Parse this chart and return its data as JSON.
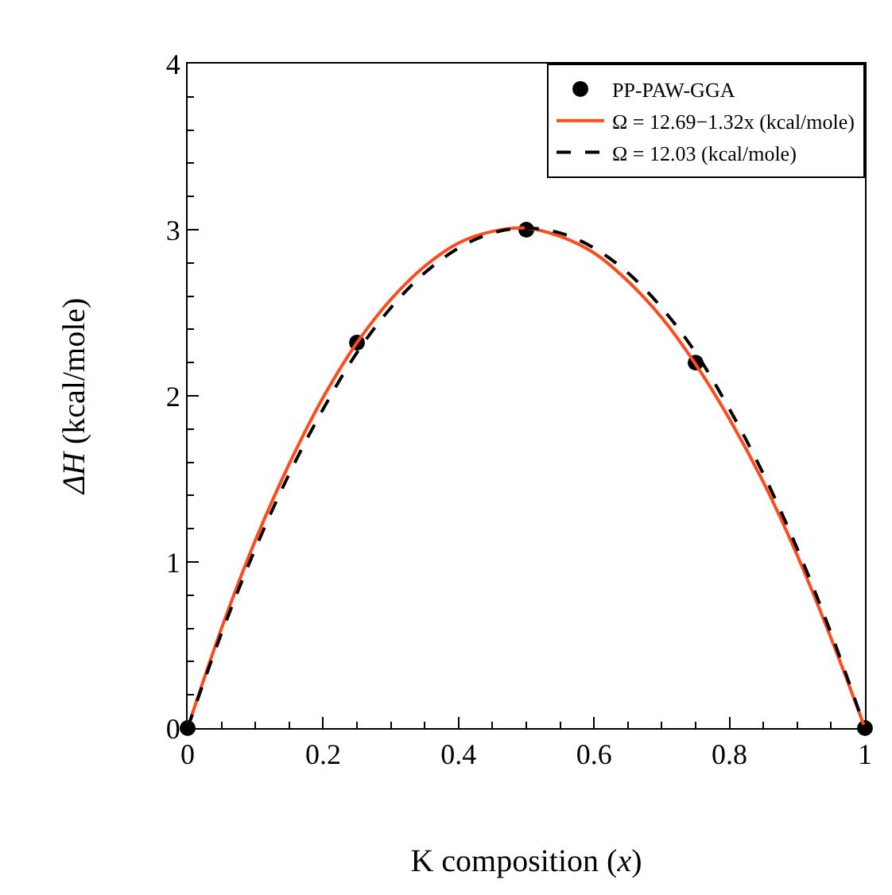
{
  "chart_data": {
    "type": "line",
    "xlabel": "K composition (x)",
    "ylabel": "ΔH (kcal/mole)",
    "xlim": [
      0,
      1
    ],
    "xticks": [
      0,
      0.2,
      0.4,
      0.6,
      0.8,
      1
    ],
    "ylim": [
      0,
      4
    ],
    "yticks": [
      0,
      1,
      2,
      3,
      4
    ],
    "legend": "top right",
    "series": [
      {
        "name": "PP-PAW-GGA",
        "type": "scatter",
        "marker": "circle",
        "color": "#000000",
        "x": [
          0,
          0.25,
          0.5,
          0.75,
          1
        ],
        "values": [
          0,
          2.32,
          3.0,
          2.2,
          0
        ]
      },
      {
        "name": "Ω = 12.69−1.32x (kcal/mole)",
        "marker": "none",
        "line_style": "solid",
        "color": "#ff4a1c",
        "x": [
          0,
          0.05,
          0.1,
          0.15,
          0.2,
          0.25,
          0.3,
          0.35,
          0.4,
          0.45,
          0.5,
          0.55,
          0.6,
          0.65,
          0.7,
          0.75,
          0.8,
          0.85,
          0.9,
          0.95,
          1
        ],
        "values": [
          0,
          0.6,
          1.13,
          1.59,
          1.99,
          2.32,
          2.58,
          2.78,
          2.92,
          2.99,
          3.01,
          2.96,
          2.86,
          2.69,
          2.47,
          2.19,
          1.86,
          1.48,
          1.04,
          0.54,
          0
        ]
      },
      {
        "name": "Ω = 12.03 (kcal/mole)",
        "marker": "none",
        "line_style": "dashed",
        "color": "#000000",
        "x": [
          0,
          0.05,
          0.1,
          0.15,
          0.2,
          0.25,
          0.3,
          0.35,
          0.4,
          0.45,
          0.5,
          0.55,
          0.6,
          0.65,
          0.7,
          0.75,
          0.8,
          0.85,
          0.9,
          0.95,
          1
        ],
        "values": [
          0,
          0.57,
          1.08,
          1.53,
          1.92,
          2.26,
          2.53,
          2.74,
          2.89,
          2.98,
          3.01,
          2.98,
          2.89,
          2.74,
          2.53,
          2.26,
          1.92,
          1.53,
          1.08,
          0.57,
          0
        ]
      }
    ]
  }
}
